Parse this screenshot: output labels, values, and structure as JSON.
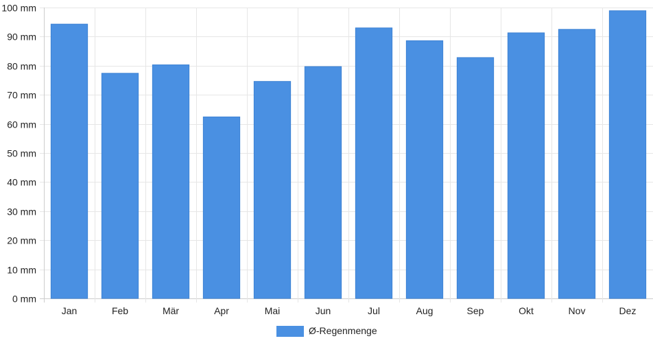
{
  "chart_data": {
    "type": "bar",
    "categories": [
      "Jan",
      "Feb",
      "Mär",
      "Apr",
      "Mai",
      "Jun",
      "Jul",
      "Aug",
      "Sep",
      "Okt",
      "Nov",
      "Dez"
    ],
    "series": [
      {
        "name": "Ø-Regenmenge",
        "values": [
          94.3,
          77.4,
          80.3,
          62.4,
          74.6,
          79.7,
          93.0,
          88.6,
          82.8,
          91.3,
          92.5,
          98.9
        ],
        "color": "#4a90e2"
      }
    ],
    "ylim": [
      0,
      100
    ],
    "y_tick_step": 10,
    "y_unit": "mm",
    "grid": true,
    "legend_position": "bottom"
  }
}
